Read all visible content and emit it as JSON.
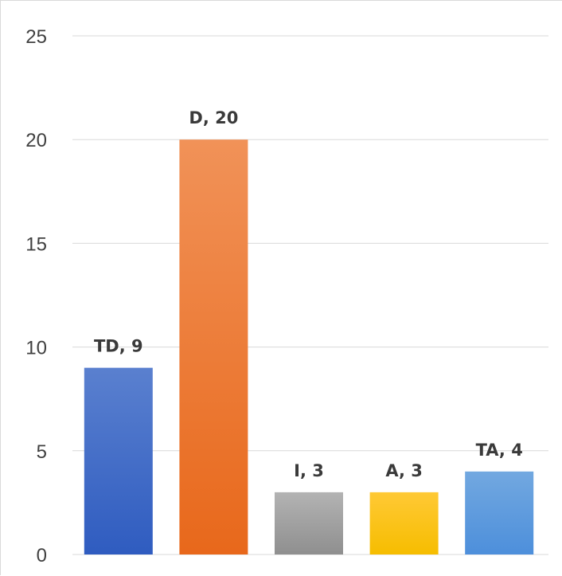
{
  "chart_data": {
    "type": "bar",
    "title": "",
    "xlabel": "",
    "ylabel": "",
    "ylim": [
      0,
      25
    ],
    "yticks": [
      0,
      5,
      10,
      15,
      20,
      25
    ],
    "grid": true,
    "legend": "none",
    "categories": [
      "TD",
      "D",
      "I",
      "A",
      "TA"
    ],
    "values": [
      9,
      20,
      3,
      3,
      4
    ],
    "data_labels": [
      "TD, 9",
      "D, 20",
      "I, 3",
      "A, 3",
      "TA, 4"
    ],
    "colors": [
      {
        "top": "#5a80cf",
        "bottom": "#2f5cc0"
      },
      {
        "top": "#f19258",
        "bottom": "#e8681b"
      },
      {
        "top": "#b3b3b3",
        "bottom": "#8f8f8f"
      },
      {
        "top": "#ffc935",
        "bottom": "#f6bd00"
      },
      {
        "top": "#72a8e0",
        "bottom": "#4d8fdb"
      }
    ]
  }
}
